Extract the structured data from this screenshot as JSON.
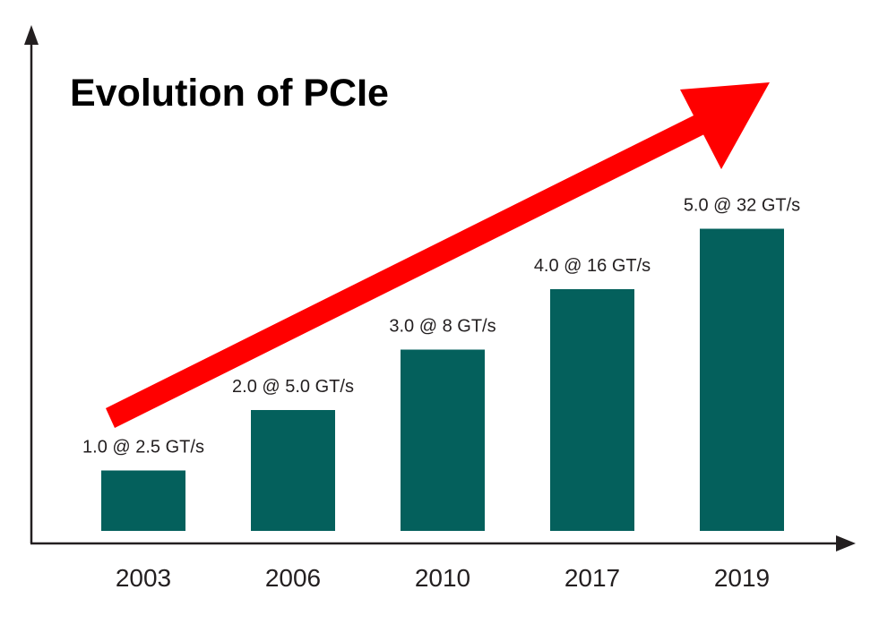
{
  "chart_data": {
    "type": "bar",
    "title": "Evolution of PCIe",
    "categories": [
      "2003",
      "2006",
      "2010",
      "2017",
      "2019"
    ],
    "bar_labels": [
      "1.0 @ 2.5 GT/s",
      "2.0 @ 5.0 GT/s",
      "3.0 @ 8 GT/s",
      "4.0 @ 16 GT/s",
      "5.0 @ 32 GT/s"
    ],
    "series": [
      {
        "values": [
          1.0,
          2.0,
          3.0,
          4.0,
          5.0
        ]
      }
    ],
    "ylim": [
      0,
      6.5
    ],
    "grid": false,
    "legend": "none",
    "trend_arrow": "increasing",
    "colors": {
      "bar": "#04605c",
      "arrow": "#ff0000",
      "axis": "#231f20",
      "text": "#231f20",
      "title": "#000000"
    }
  }
}
